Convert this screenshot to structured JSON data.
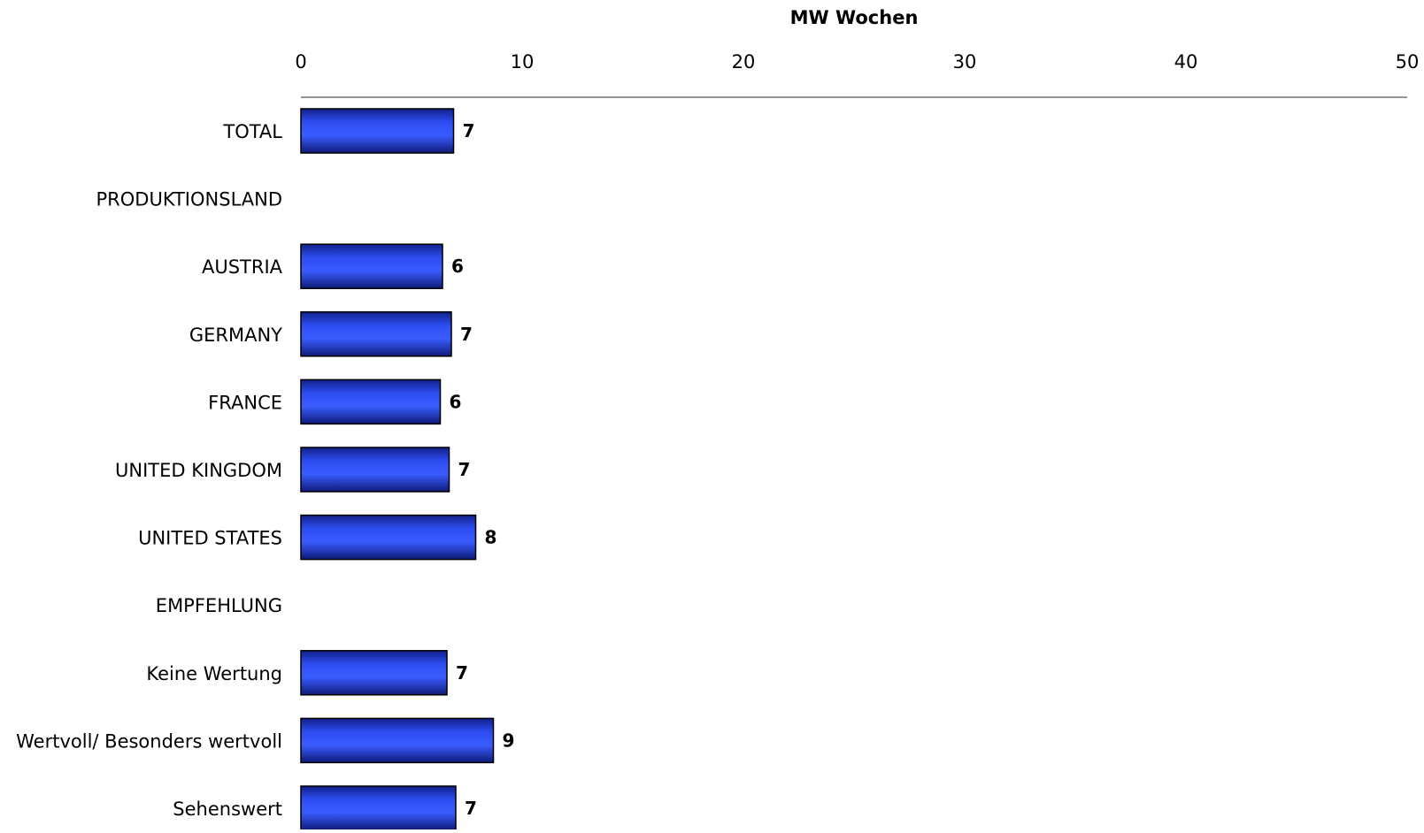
{
  "chart_data": {
    "type": "bar",
    "orientation": "horizontal",
    "title": "",
    "xlabel": "MW Wochen",
    "ylabel": "",
    "xlim": [
      0,
      50
    ],
    "x_ticks": [
      0,
      10,
      20,
      30,
      40,
      50
    ],
    "x_axis_position": "top",
    "grid": false,
    "legend": "none",
    "bar_color": "#2e4df0",
    "categories": [
      "TOTAL",
      "PRODUKTIONSLAND",
      "AUSTRIA",
      "GERMANY",
      "FRANCE",
      "UNITED KINGDOM",
      "UNITED STATES",
      "EMPFEHLUNG",
      "Keine Wertung",
      "Wertvoll/ Besonders wertvoll",
      "Sehenswert"
    ],
    "values": [
      6.9,
      null,
      6.4,
      6.8,
      6.3,
      6.7,
      7.9,
      null,
      6.6,
      8.7,
      7.0
    ],
    "data_labels": [
      "7",
      "",
      "6",
      "7",
      "6",
      "7",
      "8",
      "",
      "7",
      "9",
      "7"
    ]
  }
}
